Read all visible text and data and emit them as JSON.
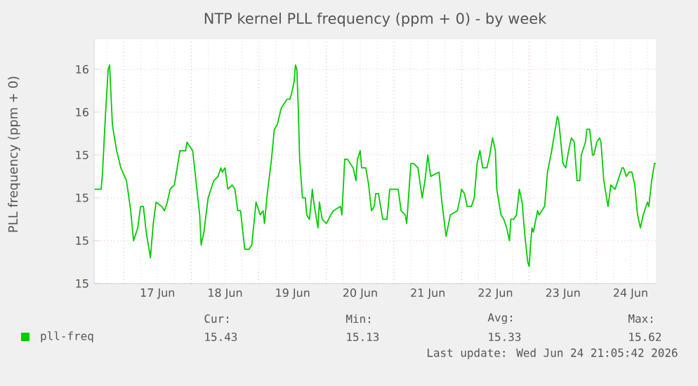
{
  "chart_data": {
    "type": "line",
    "title": "NTP kernel PLL frequency (ppm + 0) - by week",
    "ylabel": "PLL frequency (ppm + 0)",
    "xlim": [
      "2026-06-16T13:30",
      "2026-06-24T21:00"
    ],
    "xticks": [
      {
        "value": "2026-06-17T12:00",
        "label": "17 Jun"
      },
      {
        "value": "2026-06-18T12:00",
        "label": "18 Jun"
      },
      {
        "value": "2026-06-19T12:00",
        "label": "19 Jun"
      },
      {
        "value": "2026-06-20T12:00",
        "label": "20 Jun"
      },
      {
        "value": "2026-06-21T12:00",
        "label": "21 Jun"
      },
      {
        "value": "2026-06-22T12:00",
        "label": "22 Jun"
      },
      {
        "value": "2026-06-23T12:00",
        "label": "23 Jun"
      },
      {
        "value": "2026-06-24T12:00",
        "label": "24 Jun"
      }
    ],
    "ylim": [
      15.1,
      15.67
    ],
    "yticks": [
      {
        "value": 15.1,
        "label": "15"
      },
      {
        "value": 15.2,
        "label": "15"
      },
      {
        "value": 15.3,
        "label": "15"
      },
      {
        "value": 15.4,
        "label": "15"
      },
      {
        "value": 15.5,
        "label": "16"
      },
      {
        "value": 15.6,
        "label": "16"
      }
    ],
    "grid": true,
    "legend": "bottom",
    "annotations": [
      "Cur:",
      "Min:",
      "Avg:",
      "Max:",
      "15.43",
      "15.13",
      "15.33",
      "15.62",
      "Last update: Wed Jun 24 21:05:42 2026"
    ],
    "series": [
      {
        "name": "pll-freq",
        "color": "#00cc00",
        "x": [
          "2026-06-16T13:40",
          "2026-06-16T16:00",
          "2026-06-16T16:30",
          "2026-06-16T17:30",
          "2026-06-16T18:30",
          "2026-06-16T19:00",
          "2026-06-16T19:30",
          "2026-06-16T20:00",
          "2026-06-16T21:30",
          "2026-06-16T23:00",
          "2026-06-17T01:00",
          "2026-06-17T02:30",
          "2026-06-17T03:30",
          "2026-06-17T05:00",
          "2026-06-17T06:00",
          "2026-06-17T07:00",
          "2026-06-17T08:00",
          "2026-06-17T09:30",
          "2026-06-17T10:30",
          "2026-06-17T11:30",
          "2026-06-17T13:30",
          "2026-06-17T14:30",
          "2026-06-17T15:30",
          "2026-06-17T16:30",
          "2026-06-17T18:00",
          "2026-06-17T20:00",
          "2026-06-17T22:00",
          "2026-06-17T22:30",
          "2026-06-18T00:30",
          "2026-06-18T01:30",
          "2026-06-18T03:00",
          "2026-06-18T03:30",
          "2026-06-18T04:30",
          "2026-06-18T06:00",
          "2026-06-18T08:00",
          "2026-06-18T09:30",
          "2026-06-18T10:30",
          "2026-06-18T11:00",
          "2026-06-18T12:00",
          "2026-06-18T13:00",
          "2026-06-18T14:30",
          "2026-06-18T15:30",
          "2026-06-18T16:30",
          "2026-06-18T17:30",
          "2026-06-18T18:30",
          "2026-06-18T19:00",
          "2026-06-18T20:30",
          "2026-06-18T21:30",
          "2026-06-18T23:00",
          "2026-06-18T23:30",
          "2026-06-19T00:30",
          "2026-06-19T01:30",
          "2026-06-19T02:00",
          "2026-06-19T03:00",
          "2026-06-19T04:30",
          "2026-06-19T05:30",
          "2026-06-19T06:30",
          "2026-06-19T08:00",
          "2026-06-19T09:00",
          "2026-06-19T10:00",
          "2026-06-19T11:00",
          "2026-06-19T11:30",
          "2026-06-19T12:30",
          "2026-06-19T13:00",
          "2026-06-19T13:30",
          "2026-06-19T14:00",
          "2026-06-19T14:30",
          "2026-06-19T15:30",
          "2026-06-19T16:30",
          "2026-06-19T17:00",
          "2026-06-19T18:00",
          "2026-06-19T19:00",
          "2026-06-19T19:30",
          "2026-06-19T21:00",
          "2026-06-19T21:30",
          "2026-06-19T22:30",
          "2026-06-20T00:00",
          "2026-06-20T01:30",
          "2026-06-20T02:30",
          "2026-06-20T05:00",
          "2026-06-20T05:30",
          "2026-06-20T06:30",
          "2026-06-20T07:30",
          "2026-06-20T09:30",
          "2026-06-20T10:30",
          "2026-06-20T11:00",
          "2026-06-20T12:00",
          "2026-06-20T12:30",
          "2026-06-20T14:00",
          "2026-06-20T15:00",
          "2026-06-20T16:00",
          "2026-06-20T17:00",
          "2026-06-20T17:30",
          "2026-06-20T18:30",
          "2026-06-20T20:00",
          "2026-06-20T21:30",
          "2026-06-20T22:30",
          "2026-06-21T01:30",
          "2026-06-21T02:30",
          "2026-06-21T04:00",
          "2026-06-21T04:30",
          "2026-06-21T06:00",
          "2026-06-21T07:00",
          "2026-06-21T08:30",
          "2026-06-21T10:00",
          "2026-06-21T11:00",
          "2026-06-21T12:00",
          "2026-06-21T13:00",
          "2026-06-21T16:00",
          "2026-06-21T17:00",
          "2026-06-21T18:30",
          "2026-06-21T20:00",
          "2026-06-21T22:30",
          "2026-06-21T23:30",
          "2026-06-22T00:00",
          "2026-06-22T01:00",
          "2026-06-22T02:00",
          "2026-06-22T03:30",
          "2026-06-22T04:30",
          "2026-06-22T05:30",
          "2026-06-22T06:30",
          "2026-06-22T07:30",
          "2026-06-22T09:00",
          "2026-06-22T10:00",
          "2026-06-22T11:00",
          "2026-06-22T12:00",
          "2026-06-22T12:30",
          "2026-06-22T14:00",
          "2026-06-22T15:00",
          "2026-06-22T16:00",
          "2026-06-22T17:00",
          "2026-06-22T17:30",
          "2026-06-22T18:30",
          "2026-06-22T19:30",
          "2026-06-22T20:30",
          "2026-06-22T21:30",
          "2026-06-22T22:30",
          "2026-06-22T23:30",
          "2026-06-23T00:00",
          "2026-06-23T00:30",
          "2026-06-23T01:00",
          "2026-06-23T01:30",
          "2026-06-23T03:00",
          "2026-06-23T03:30",
          "2026-06-23T05:30",
          "2026-06-23T06:30",
          "2026-06-23T08:00",
          "2026-06-23T09:00",
          "2026-06-23T10:00",
          "2026-06-23T10:30",
          "2026-06-23T12:00",
          "2026-06-23T13:00",
          "2026-06-23T14:00",
          "2026-06-23T15:00",
          "2026-06-23T16:00",
          "2026-06-23T17:00",
          "2026-06-23T18:00",
          "2026-06-23T18:30",
          "2026-06-23T20:00",
          "2026-06-23T20:30",
          "2026-06-23T21:30",
          "2026-06-23T22:30",
          "2026-06-23T23:00",
          "2026-06-24T00:00",
          "2026-06-24T01:00",
          "2026-06-24T01:30",
          "2026-06-24T02:30",
          "2026-06-24T04:00",
          "2026-06-24T05:00",
          "2026-06-24T06:30",
          "2026-06-24T07:30",
          "2026-06-24T09:00",
          "2026-06-24T09:30",
          "2026-06-24T10:30",
          "2026-06-24T11:30",
          "2026-06-24T12:30",
          "2026-06-24T13:30",
          "2026-06-24T14:30",
          "2026-06-24T15:30",
          "2026-06-24T16:30",
          "2026-06-24T18:00",
          "2026-06-24T18:30",
          "2026-06-24T19:30",
          "2026-06-24T20:30",
          "2026-06-24T21:00"
        ],
        "values": [
          15.32,
          15.32,
          15.36,
          15.49,
          15.6,
          15.61,
          15.54,
          15.47,
          15.41,
          15.37,
          15.34,
          15.27,
          15.2,
          15.23,
          15.28,
          15.28,
          15.22,
          15.16,
          15.24,
          15.29,
          15.28,
          15.27,
          15.29,
          15.32,
          15.33,
          15.41,
          15.41,
          15.43,
          15.41,
          15.35,
          15.26,
          15.19,
          15.22,
          15.3,
          15.34,
          15.35,
          15.37,
          15.36,
          15.37,
          15.32,
          15.33,
          15.32,
          15.27,
          15.27,
          15.21,
          15.18,
          15.18,
          15.19,
          15.29,
          15.28,
          15.26,
          15.27,
          15.24,
          15.31,
          15.39,
          15.46,
          15.47,
          15.51,
          15.52,
          15.53,
          15.53,
          15.54,
          15.57,
          15.61,
          15.6,
          15.51,
          15.39,
          15.3,
          15.3,
          15.26,
          15.25,
          15.32,
          15.29,
          15.23,
          15.29,
          15.25,
          15.24,
          15.26,
          15.27,
          15.28,
          15.26,
          15.39,
          15.39,
          15.37,
          15.34,
          15.39,
          15.41,
          15.37,
          15.37,
          15.33,
          15.27,
          15.28,
          15.31,
          15.31,
          15.25,
          15.25,
          15.32,
          15.32,
          15.27,
          15.26,
          15.24,
          15.38,
          15.38,
          15.37,
          15.3,
          15.34,
          15.4,
          15.35,
          15.36,
          15.29,
          15.21,
          15.26,
          15.27,
          15.3,
          15.32,
          15.31,
          15.28,
          15.28,
          15.3,
          15.38,
          15.41,
          15.37,
          15.37,
          15.4,
          15.44,
          15.41,
          15.32,
          15.26,
          15.25,
          15.23,
          15.2,
          15.25,
          15.25,
          15.26,
          15.32,
          15.29,
          15.21,
          15.15,
          15.14,
          15.19,
          15.23,
          15.22,
          15.27,
          15.26,
          15.28,
          15.36,
          15.41,
          15.45,
          15.49,
          15.48,
          15.38,
          15.37,
          15.41,
          15.44,
          15.43,
          15.34,
          15.34,
          15.4,
          15.43,
          15.46,
          15.46,
          15.4,
          15.4,
          15.43,
          15.44,
          15.43,
          15.34,
          15.28,
          15.33,
          15.32,
          15.34,
          15.37,
          15.37,
          15.35,
          15.36,
          15.36,
          15.33,
          15.26,
          15.23,
          15.26,
          15.29,
          15.28,
          15.34,
          15.38,
          15.38
        ]
      }
    ]
  }
}
